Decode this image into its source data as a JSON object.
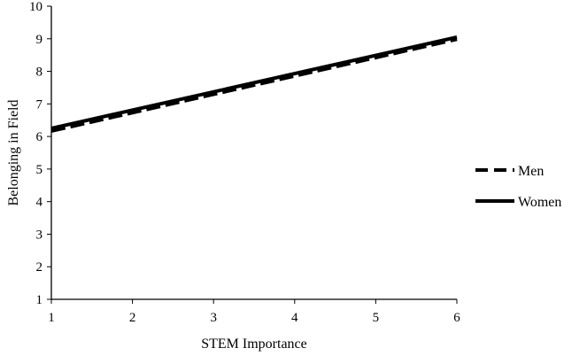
{
  "chart_data": {
    "type": "line",
    "title": "",
    "xlabel": "STEM Importance",
    "ylabel": "Belonging in Field",
    "x": [
      1,
      6
    ],
    "xticks": [
      "1",
      "2",
      "3",
      "4",
      "5",
      "6"
    ],
    "yticks": [
      "1",
      "2",
      "3",
      "4",
      "5",
      "6",
      "7",
      "8",
      "9",
      "10"
    ],
    "xlim": [
      1,
      6
    ],
    "ylim": [
      1,
      10
    ],
    "grid": false,
    "legend_position": "right",
    "series": [
      {
        "name": "Men",
        "values": [
          6.18,
          9.0
        ],
        "style": "dashed",
        "color": "#000000"
      },
      {
        "name": "Women",
        "values": [
          6.25,
          9.05
        ],
        "style": "solid",
        "color": "#000000"
      }
    ]
  }
}
